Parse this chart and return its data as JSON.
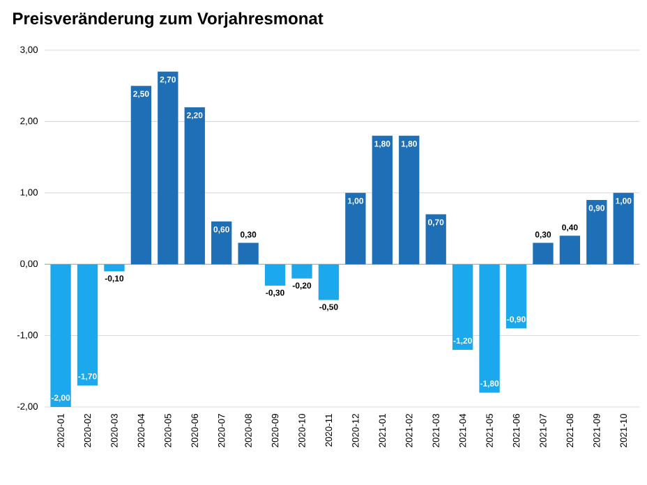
{
  "chart_data": {
    "type": "bar",
    "title": "Preisveränderung zum Vorjahresmonat",
    "categories": [
      "2020-01",
      "2020-02",
      "2020-03",
      "2020-04",
      "2020-05",
      "2020-06",
      "2020-07",
      "2020-08",
      "2020-09",
      "2020-10",
      "2020-11",
      "2020-12",
      "2021-01",
      "2021-02",
      "2021-03",
      "2021-04",
      "2021-05",
      "2021-06",
      "2021-07",
      "2021-08",
      "2021-09",
      "2021-10"
    ],
    "values": [
      -2.0,
      -1.7,
      -0.1,
      2.5,
      2.7,
      2.2,
      0.6,
      0.3,
      -0.3,
      -0.2,
      -0.5,
      1.0,
      1.8,
      1.8,
      0.7,
      -1.2,
      -1.8,
      -0.9,
      0.3,
      0.4,
      0.9,
      1.0
    ],
    "value_labels": [
      "-2,00",
      "-1,70",
      "-0,10",
      "2,50",
      "2,70",
      "2,20",
      "0,60",
      "0,30",
      "-0,30",
      "-0,20",
      "-0,50",
      "1,00",
      "1,80",
      "1,80",
      "0,70",
      "-1,20",
      "-1,80",
      "-0,90",
      "0,30",
      "0,40",
      "0,90",
      "1,00"
    ],
    "colors": [
      "#1ba8ec",
      "#1ba8ec",
      "#1ba8ec",
      "#1e6fb6",
      "#1e6fb6",
      "#1e6fb6",
      "#1e6fb6",
      "#1e6fb6",
      "#1ba8ec",
      "#1ba8ec",
      "#1ba8ec",
      "#1e6fb6",
      "#1e6fb6",
      "#1e6fb6",
      "#1e6fb6",
      "#1ba8ec",
      "#1ba8ec",
      "#1ba8ec",
      "#1e6fb6",
      "#1e6fb6",
      "#1e6fb6",
      "#1e6fb6"
    ],
    "ylim": [
      -2,
      3
    ],
    "yticks": [
      {
        "value": -2,
        "label": "-2,00"
      },
      {
        "value": -1,
        "label": "-1,00"
      },
      {
        "value": 0,
        "label": "0,00"
      },
      {
        "value": 1,
        "label": "1,00"
      },
      {
        "value": 2,
        "label": "2,00"
      },
      {
        "value": 3,
        "label": "3,00"
      }
    ],
    "grid": "y"
  }
}
